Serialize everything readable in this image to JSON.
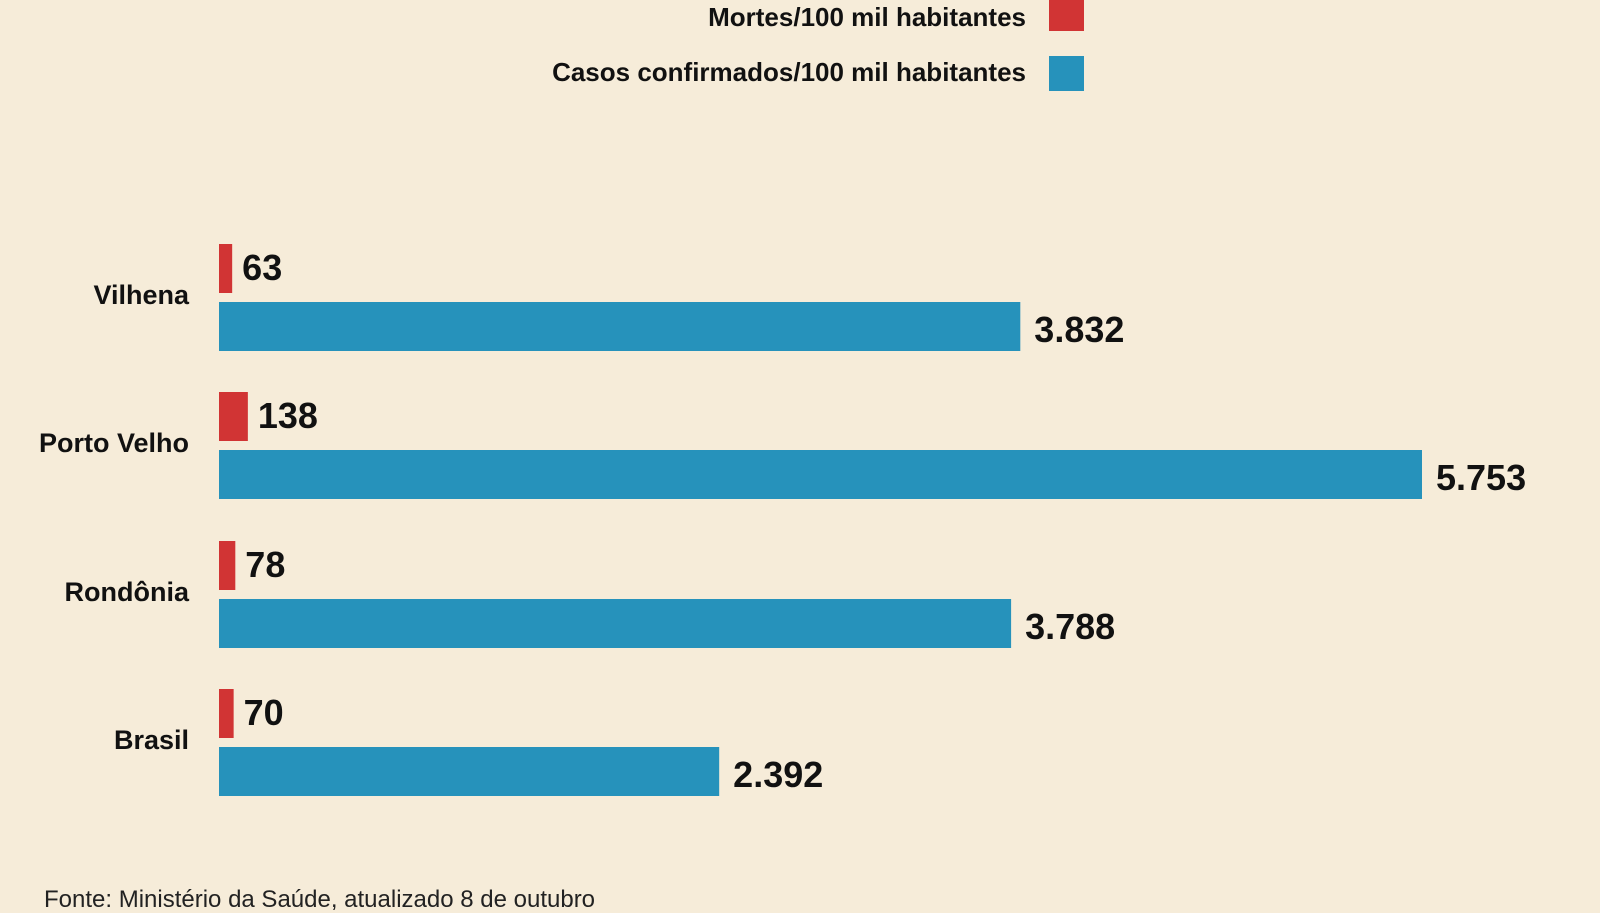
{
  "legend": [
    {
      "name": "Mortes/100 mil habitantes",
      "color": "#d13434"
    },
    {
      "name": "Casos confirmados/100 mil habitantes",
      "color": "#2692bb"
    }
  ],
  "source": "Fonte: Ministério da Saúde, atualizado 8 de outubro",
  "chart_data": {
    "type": "bar",
    "orientation": "horizontal",
    "categories": [
      "Vilhena",
      "Porto Velho",
      "Rondônia",
      "Brasil"
    ],
    "series": [
      {
        "name": "Mortes/100 mil habitantes",
        "values": [
          63,
          138,
          78,
          70
        ],
        "labels": [
          "63",
          "138",
          "78",
          "70"
        ],
        "color": "#d13434"
      },
      {
        "name": "Casos confirmados/100 mil habitantes",
        "values": [
          3832,
          5753,
          3788,
          2392
        ],
        "labels": [
          "3.832",
          "5.753",
          "3.788",
          "2.392"
        ],
        "color": "#2692bb"
      }
    ],
    "xlim": [
      0,
      5753
    ],
    "grid": false,
    "legend_position": "top-right",
    "background": "#f6ecd9"
  }
}
